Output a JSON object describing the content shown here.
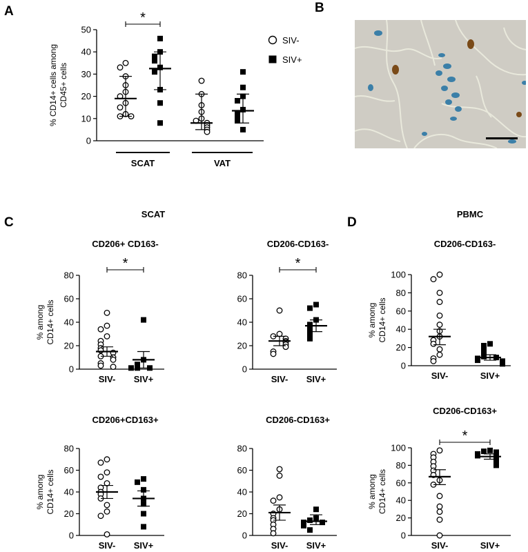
{
  "colors": {
    "stroke": "#000000",
    "fill_solid": "#000000",
    "fill_open": "#ffffff"
  },
  "panels": {
    "A": "A",
    "B": "B",
    "C": "C",
    "D": "D"
  },
  "sections": {
    "C": "SCAT",
    "D": "PBMC"
  },
  "micrograph": {
    "name": "histology-micrograph"
  },
  "chart_data": [
    {
      "id": "A",
      "type": "scatter",
      "title": "",
      "ylabel": [
        "% CD14+ cells among",
        "CD45+ cells"
      ],
      "ylim": [
        0,
        50
      ],
      "yticks": [
        0,
        10,
        20,
        30,
        40,
        50
      ],
      "categories": [
        "SIV-",
        "SIV+",
        "SIV-",
        "SIV+"
      ],
      "group_labels": [
        {
          "label": "SCAT",
          "span": [
            0,
            1
          ]
        },
        {
          "label": "VAT",
          "span": [
            2,
            3
          ]
        }
      ],
      "legend": {
        "placement": "top-right",
        "entries": [
          {
            "label": "SIV-",
            "marker": "circle-open"
          },
          {
            "label": "SIV+",
            "marker": "square-filled"
          }
        ]
      },
      "series": [
        {
          "category": 0,
          "marker": "circle-open",
          "values": [
            35,
            33,
            29,
            25,
            22,
            20,
            17,
            15,
            12,
            11,
            11
          ],
          "center": 19,
          "err": [
            11,
            29
          ]
        },
        {
          "category": 1,
          "marker": "square-filled",
          "values": [
            46,
            40,
            38,
            36,
            33,
            31,
            23,
            17,
            8
          ],
          "center": 32.5,
          "err": [
            23,
            40
          ]
        },
        {
          "category": 2,
          "marker": "circle-open",
          "values": [
            27,
            21,
            16,
            13,
            10,
            9,
            8,
            7,
            6,
            5,
            4
          ],
          "center": 8,
          "err": [
            5,
            21
          ]
        },
        {
          "category": 3,
          "marker": "square-filled",
          "values": [
            31,
            24,
            20,
            18,
            14,
            12,
            10,
            9,
            5
          ],
          "center": 13.5,
          "err": [
            8,
            21
          ]
        }
      ],
      "significance": [
        {
          "between": [
            0,
            1
          ],
          "label": "*"
        }
      ]
    },
    {
      "id": "C1",
      "type": "scatter",
      "title": "CD206+ CD163-",
      "ylabel": [
        "% among",
        "CD14+ cells"
      ],
      "ylim": [
        0,
        80
      ],
      "yticks": [
        0,
        20,
        40,
        60,
        80
      ],
      "categories": [
        "SIV-",
        "SIV+"
      ],
      "series": [
        {
          "category": 0,
          "marker": "circle-open",
          "values": [
            48,
            37,
            34,
            28,
            24,
            21,
            18,
            16,
            14,
            11,
            10,
            8,
            5,
            3,
            2
          ],
          "center": 15,
          "err": [
            11,
            19
          ]
        },
        {
          "category": 1,
          "marker": "square-filled",
          "values": [
            42,
            8,
            4,
            1,
            1,
            1
          ],
          "center": 8,
          "err": [
            1,
            15
          ]
        }
      ],
      "significance": [
        {
          "between": [
            0,
            1
          ],
          "label": "*"
        }
      ]
    },
    {
      "id": "C2",
      "type": "scatter",
      "title": "CD206-CD163-",
      "ylabel": [],
      "ylim": [
        0,
        80
      ],
      "yticks": [
        0,
        20,
        40,
        60,
        80
      ],
      "categories": [
        "SIV-",
        "SIV+"
      ],
      "series": [
        {
          "category": 0,
          "marker": "circle-open",
          "values": [
            50,
            30,
            28,
            26,
            24,
            23,
            21,
            19,
            15,
            13
          ],
          "center": 24,
          "err": [
            20,
            28
          ]
        },
        {
          "category": 1,
          "marker": "square-filled",
          "values": [
            55,
            52,
            42,
            38,
            34,
            30,
            26
          ],
          "center": 37,
          "err": [
            32,
            42
          ]
        }
      ],
      "significance": [
        {
          "between": [
            0,
            1
          ],
          "label": "*"
        }
      ]
    },
    {
      "id": "C3",
      "type": "scatter",
      "title": "CD206+CD163+",
      "ylabel": [
        "% among",
        "CD14+ cells"
      ],
      "ylim": [
        0,
        80
      ],
      "yticks": [
        0,
        20,
        40,
        60,
        80
      ],
      "categories": [
        "SIV-",
        "SIV+"
      ],
      "series": [
        {
          "category": 0,
          "marker": "circle-open",
          "values": [
            70,
            67,
            58,
            54,
            48,
            44,
            40,
            38,
            34,
            28,
            22,
            18,
            1
          ],
          "center": 40,
          "err": [
            34,
            46
          ]
        },
        {
          "category": 1,
          "marker": "square-filled",
          "values": [
            52,
            49,
            42,
            34,
            29,
            20,
            8
          ],
          "center": 34,
          "err": [
            27,
            41
          ]
        }
      ],
      "significance": []
    },
    {
      "id": "C4",
      "type": "scatter",
      "title": "CD206-CD163+",
      "ylabel": [],
      "ylim": [
        0,
        80
      ],
      "yticks": [
        0,
        20,
        40,
        60,
        80
      ],
      "categories": [
        "SIV-",
        "SIV+"
      ],
      "series": [
        {
          "category": 0,
          "marker": "circle-open",
          "values": [
            61,
            55,
            35,
            32,
            24,
            20,
            16,
            14,
            10,
            6,
            2
          ],
          "center": 21,
          "err": [
            14,
            28
          ]
        },
        {
          "category": 1,
          "marker": "square-filled",
          "values": [
            24,
            16,
            14,
            12,
            12,
            10,
            9,
            5
          ],
          "center": 13,
          "err": [
            10,
            19
          ]
        }
      ],
      "significance": []
    },
    {
      "id": "D1",
      "type": "scatter",
      "title": "CD206-CD163-",
      "ylabel": [
        "% among",
        "CD14+ cells"
      ],
      "ylim": [
        0,
        100
      ],
      "yticks": [
        0,
        20,
        40,
        60,
        80,
        100
      ],
      "categories": [
        "SIV-",
        "SIV+"
      ],
      "series": [
        {
          "category": 0,
          "marker": "circle-open",
          "values": [
            100,
            95,
            80,
            70,
            55,
            45,
            38,
            32,
            28,
            24,
            18,
            12,
            8,
            5
          ],
          "center": 32,
          "err": [
            23,
            40
          ]
        },
        {
          "category": 1,
          "marker": "square-filled",
          "values": [
            24,
            22,
            17,
            13,
            10,
            9,
            8,
            6,
            5,
            4,
            3,
            2
          ],
          "center": 9,
          "err": [
            6,
            12
          ]
        }
      ],
      "significance": []
    },
    {
      "id": "D2",
      "type": "scatter",
      "title": "CD206-CD163+",
      "ylabel": [
        "% among",
        "CD14+ cells"
      ],
      "ylim": [
        0,
        100
      ],
      "yticks": [
        0,
        20,
        40,
        60,
        80,
        100
      ],
      "categories": [
        "SIV-",
        "SIV+"
      ],
      "series": [
        {
          "category": 0,
          "marker": "circle-open",
          "values": [
            97,
            93,
            89,
            84,
            79,
            74,
            69,
            63,
            58,
            45,
            33,
            27,
            18,
            0
          ],
          "center": 67,
          "err": [
            58,
            75
          ]
        },
        {
          "category": 1,
          "marker": "square-filled",
          "values": [
            97,
            96,
            95,
            93,
            91,
            89,
            87,
            85,
            82,
            80
          ],
          "center": 90,
          "err": [
            87,
            93
          ]
        }
      ],
      "significance": [
        {
          "between": [
            0,
            1
          ],
          "label": "*"
        }
      ]
    }
  ]
}
